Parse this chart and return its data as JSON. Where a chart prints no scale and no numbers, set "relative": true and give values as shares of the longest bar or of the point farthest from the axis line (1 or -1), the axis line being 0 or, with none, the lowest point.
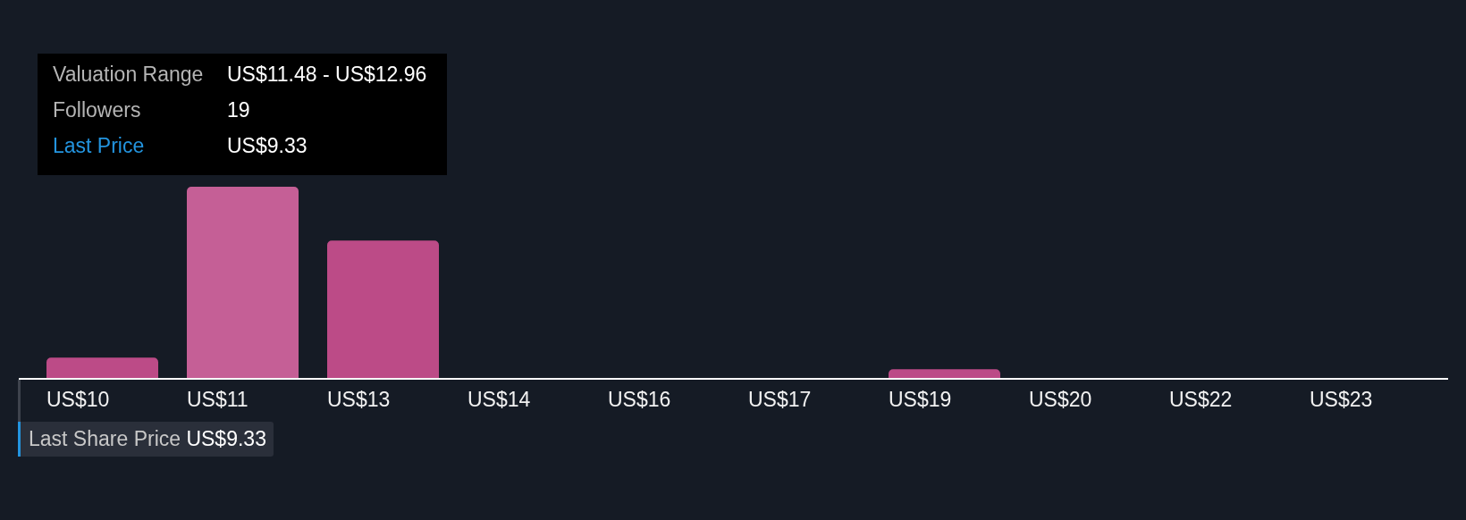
{
  "chart_data": {
    "type": "bar",
    "categories": [
      "US$10",
      "US$11",
      "US$13",
      "US$14",
      "US$16",
      "US$17",
      "US$19",
      "US$20",
      "US$22",
      "US$23"
    ],
    "values": [
      0.11,
      1,
      0.72,
      0,
      0,
      0,
      0.05,
      0,
      0,
      0
    ],
    "relative": true,
    "colors": [
      "#bc4b87",
      "#c55f96",
      "#bc4b87",
      "#bc4b87",
      "#bc4b87",
      "#bc4b87",
      "#bc4b87",
      "#bc4b87",
      "#bc4b87",
      "#bc4b87"
    ],
    "annotations": [
      "Valuation Range",
      "US$11.48 - US$12.96",
      "Followers",
      "19",
      "Last Price",
      "US$9.33",
      "Last Share Price",
      "US$9.33"
    ]
  }
}
